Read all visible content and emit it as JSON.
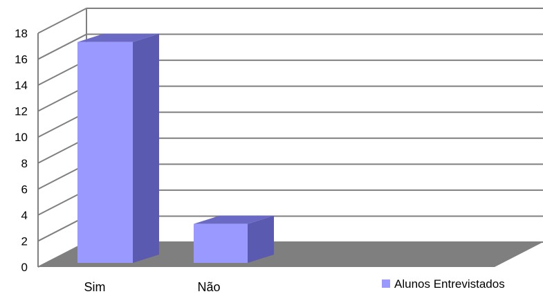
{
  "chart_data": {
    "type": "bar",
    "three_d": true,
    "categories": [
      "Sim",
      "Não"
    ],
    "series": [
      {
        "name": "Alunos Entrevistados",
        "values": [
          17,
          3
        ]
      }
    ],
    "ylim": [
      0,
      18
    ],
    "yticks": [
      "0",
      "2",
      "4",
      "6",
      "8",
      "10",
      "12",
      "14",
      "16",
      "18"
    ],
    "grid": true,
    "legend_position": "bottom-right",
    "colors": {
      "bar_front": "#9999ff",
      "bar_side": "#5a5ab0",
      "bar_top": "#6a6ac4",
      "floor": "#7f7f7f",
      "grid": "#7f7f7f"
    }
  }
}
